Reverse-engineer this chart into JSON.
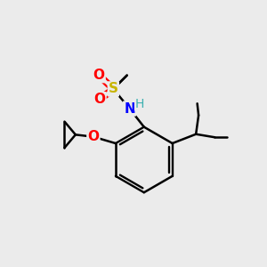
{
  "background_color": "#ebebeb",
  "bond_color": "#000000",
  "atom_colors": {
    "S": "#c8b400",
    "O": "#ff0000",
    "N": "#0000ff",
    "H": "#3cb0b0",
    "C": "#000000"
  },
  "figsize": [
    3.0,
    3.0
  ],
  "dpi": 100,
  "xlim": [
    0,
    10
  ],
  "ylim": [
    0,
    10
  ]
}
